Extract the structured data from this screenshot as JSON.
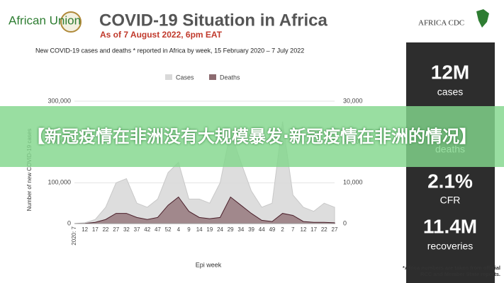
{
  "header": {
    "logo_left": "African Union",
    "title": "COVID-19 Situation in Africa",
    "subtitle": "As of 7 August 2022, 6pm EAT",
    "logo_right": "AFRICA CDC"
  },
  "stats": [
    {
      "value": "12M",
      "label": "cases"
    },
    {
      "label": "deaths"
    },
    {
      "value": "2.1%",
      "label": "CFR"
    },
    {
      "value": "11.4M",
      "label": "recoveries"
    }
  ],
  "footnote": "*Africa numbers are taken from official RCC and Member State reports.",
  "banner": "【新冠疫情在非洲没有大规模暴发·新冠疫情在非洲的情况】",
  "chart_data": {
    "type": "area",
    "title": "New COVID-19 cases and deaths * reported in Africa by week, 15 February 2020 – 7 July 2022",
    "xlabel": "Epi week",
    "ylabel": "Number of new COVID-19 cases",
    "categories": [
      "2020: 7",
      "12",
      "17",
      "22",
      "27",
      "32",
      "37",
      "42",
      "47",
      "52",
      "4",
      "9",
      "14",
      "19",
      "24",
      "29",
      "34",
      "39",
      "44",
      "49",
      "2",
      "7",
      "12",
      "17",
      "22",
      "27"
    ],
    "series": [
      {
        "name": "Cases",
        "color": "#d9d9d9",
        "values": [
          0,
          2000,
          10000,
          40000,
          100000,
          110000,
          50000,
          40000,
          60000,
          125000,
          150000,
          60000,
          60000,
          50000,
          100000,
          225000,
          150000,
          80000,
          40000,
          50000,
          250000,
          70000,
          40000,
          30000,
          50000,
          40000
        ]
      },
      {
        "name": "Deaths",
        "color": "#8c6b70",
        "axis": "y2",
        "values": [
          0,
          50,
          300,
          1000,
          2500,
          2500,
          1500,
          1000,
          1500,
          4500,
          6500,
          3000,
          1500,
          1200,
          1500,
          6500,
          4500,
          2500,
          800,
          500,
          2500,
          2000,
          500,
          300,
          300,
          200
        ]
      }
    ],
    "ylim": [
      0,
      300000
    ],
    "yticks": [
      0,
      {
        "value": 100000,
        "label": "100,000"
      },
      {
        "value": 200000,
        "label": "200,000"
      },
      {
        "value": 300000,
        "label": "300,000"
      }
    ],
    "y2lim": [
      0,
      30000
    ],
    "y2ticks": [
      0,
      {
        "value": 10000,
        "label": "10,000"
      },
      {
        "value": 20000,
        "label": "20,000"
      },
      {
        "value": 30000,
        "label": "30,000"
      }
    ],
    "grid": true
  }
}
